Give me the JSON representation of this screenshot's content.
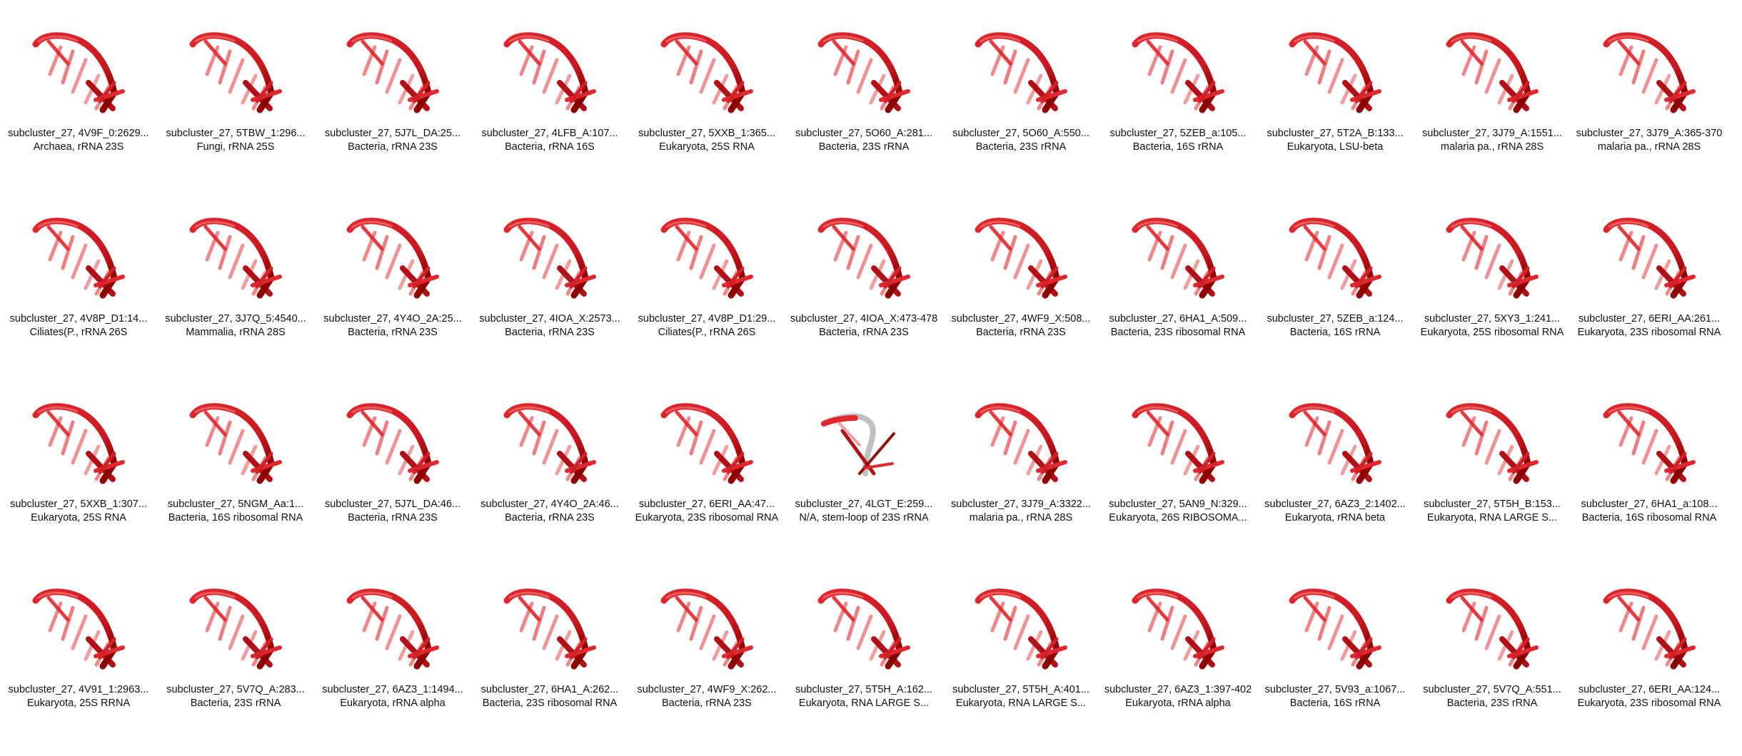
{
  "tile_icon": "rna-loop-structure-icon",
  "colors": {
    "strand": "#e0282e",
    "strand_dark": "#8c0000",
    "strand_light": "#f0a0a0",
    "odd_strand": "#c0c0c0"
  },
  "tiles": [
    {
      "id": "subcluster_27, 4V9F_0:2629...",
      "desc": "Archaea, rRNA 23S"
    },
    {
      "id": "subcluster_27, 5TBW_1:296...",
      "desc": "Fungi, rRNA 25S"
    },
    {
      "id": "subcluster_27, 5J7L_DA:25...",
      "desc": "Bacteria, rRNA 23S"
    },
    {
      "id": "subcluster_27, 4LFB_A:107...",
      "desc": "Bacteria, rRNA 16S"
    },
    {
      "id": "subcluster_27, 5XXB_1:365...",
      "desc": "Eukaryota, 25S RNA"
    },
    {
      "id": "subcluster_27, 5O60_A:281...",
      "desc": "Bacteria, 23S rRNA"
    },
    {
      "id": "subcluster_27, 5O60_A:550...",
      "desc": "Bacteria, 23S rRNA"
    },
    {
      "id": "subcluster_27, 5ZEB_a:105...",
      "desc": "Bacteria, 16S rRNA"
    },
    {
      "id": "subcluster_27, 5T2A_B:133...",
      "desc": "Eukaryota, LSU-beta"
    },
    {
      "id": "subcluster_27, 3J79_A:1551...",
      "desc": "malaria pa., rRNA 28S"
    },
    {
      "id": "subcluster_27, 3J79_A:365-370",
      "desc": "malaria pa., rRNA 28S"
    },
    {
      "id": "subcluster_27, 4V8P_D1:14...",
      "desc": "Ciliates(P., rRNA 26S"
    },
    {
      "id": "subcluster_27, 3J7Q_5:4540...",
      "desc": "Mammalia, rRNA 28S"
    },
    {
      "id": "subcluster_27, 4Y4O_2A:25...",
      "desc": "Bacteria, rRNA 23S"
    },
    {
      "id": "subcluster_27, 4IOA_X:2573...",
      "desc": "Bacteria, rRNA 23S"
    },
    {
      "id": "subcluster_27, 4V8P_D1:29...",
      "desc": "Ciliates(P., rRNA 26S"
    },
    {
      "id": "subcluster_27, 4IOA_X:473-478",
      "desc": "Bacteria, rRNA 23S"
    },
    {
      "id": "subcluster_27, 4WF9_X:508...",
      "desc": "Bacteria, rRNA 23S"
    },
    {
      "id": "subcluster_27, 6HA1_A:509...",
      "desc": "Bacteria, 23S ribosomal RNA"
    },
    {
      "id": "subcluster_27, 5ZEB_a:124...",
      "desc": "Bacteria, 16S rRNA"
    },
    {
      "id": "subcluster_27, 5XY3_1:241...",
      "desc": "Eukaryota, 25S ribosomal RNA"
    },
    {
      "id": "subcluster_27, 6ERI_AA:261...",
      "desc": "Eukaryota, 23S ribosomal RNA"
    },
    {
      "id": "subcluster_27, 5XXB_1:307...",
      "desc": "Eukaryota, 25S RNA"
    },
    {
      "id": "subcluster_27, 5NGM_Aa:1...",
      "desc": "Bacteria, 16S ribosomal RNA"
    },
    {
      "id": "subcluster_27, 5J7L_DA:46...",
      "desc": "Bacteria, rRNA 23S"
    },
    {
      "id": "subcluster_27, 4Y4O_2A:46...",
      "desc": "Bacteria, rRNA 23S"
    },
    {
      "id": "subcluster_27, 6ERI_AA:47...",
      "desc": "Eukaryota, 23S ribosomal RNA"
    },
    {
      "id": "subcluster_27, 4LGT_E:259...",
      "desc": "N/A, stem-loop of 23S rRNA",
      "variant": "odd"
    },
    {
      "id": "subcluster_27, 3J79_A:3322...",
      "desc": "malaria pa., rRNA 28S"
    },
    {
      "id": "subcluster_27, 5AN9_N:329...",
      "desc": "Eukaryota, 26S RIBOSOMA..."
    },
    {
      "id": "subcluster_27, 6AZ3_2:1402...",
      "desc": "Eukaryota, rRNA beta"
    },
    {
      "id": "subcluster_27, 5T5H_B:153...",
      "desc": "Eukaryota, RNA LARGE S..."
    },
    {
      "id": "subcluster_27, 6HA1_a:108...",
      "desc": "Bacteria, 16S ribosomal RNA"
    },
    {
      "id": "subcluster_27, 4V91_1:2963...",
      "desc": "Eukaryota, 25S RRNA"
    },
    {
      "id": "subcluster_27, 5V7Q_A:283...",
      "desc": "Bacteria, 23S rRNA"
    },
    {
      "id": "subcluster_27, 6AZ3_1:1494...",
      "desc": "Eukaryota, rRNA alpha"
    },
    {
      "id": "subcluster_27, 6HA1_A:262...",
      "desc": "Bacteria, 23S ribosomal RNA"
    },
    {
      "id": "subcluster_27, 4WF9_X:262...",
      "desc": "Bacteria, rRNA 23S"
    },
    {
      "id": "subcluster_27, 5T5H_A:162...",
      "desc": "Eukaryota, RNA LARGE S..."
    },
    {
      "id": "subcluster_27, 5T5H_A:401...",
      "desc": "Eukaryota, RNA LARGE S..."
    },
    {
      "id": "subcluster_27, 6AZ3_1:397-402",
      "desc": "Eukaryota, rRNA alpha"
    },
    {
      "id": "subcluster_27, 5V93_a:1067...",
      "desc": "Bacteria, 16S rRNA"
    },
    {
      "id": "subcluster_27, 5V7Q_A:551...",
      "desc": "Bacteria, 23S rRNA"
    },
    {
      "id": "subcluster_27, 6ERI_AA:124...",
      "desc": "Eukaryota, 23S ribosomal RNA"
    }
  ]
}
